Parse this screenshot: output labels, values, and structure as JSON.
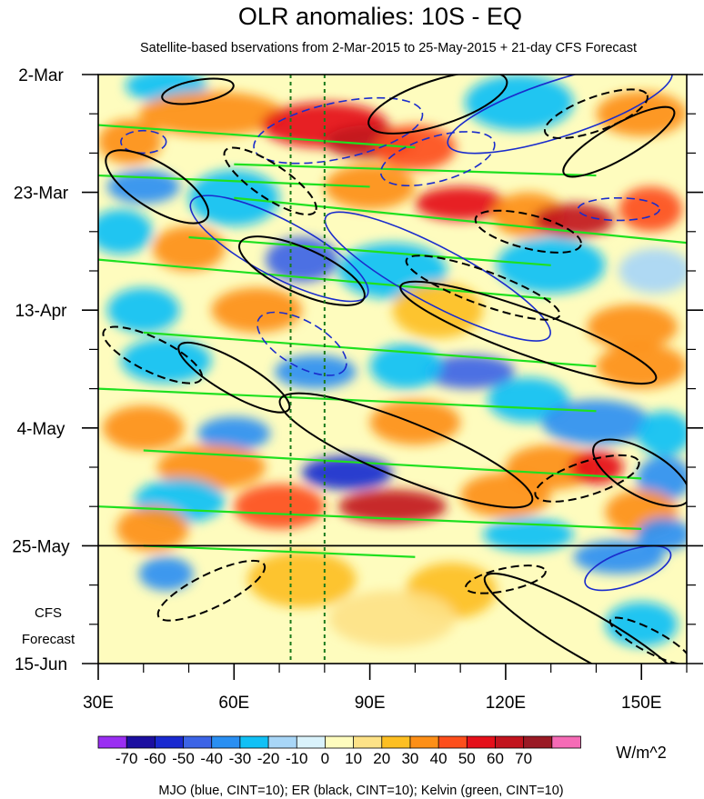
{
  "chart_data": {
    "type": "heatmap",
    "title": "OLR anomalies: 10S - EQ",
    "subtitle": "Satellite-based bservations from 2-Mar-2015 to 25-May-2015 + 21-day CFS Forecast",
    "x_axis": {
      "range": [
        30,
        160
      ],
      "ticks": [
        30,
        60,
        90,
        120,
        150
      ],
      "tick_labels": [
        "30E",
        "60E",
        "90E",
        "120E",
        "150E"
      ]
    },
    "y_axis": {
      "range_days": [
        0,
        105
      ],
      "ticks_days": [
        0,
        21,
        42,
        63,
        84,
        105
      ],
      "tick_labels": [
        "2-Mar",
        "23-Mar",
        "13-Apr",
        "4-May",
        "25-May",
        "15-Jun"
      ]
    },
    "forecast_label": [
      "CFS",
      "Forecast"
    ],
    "forecast_start_day": 84,
    "reference_longitudes": [
      72.5,
      80
    ],
    "colorbar": {
      "levels": [
        -70,
        -60,
        -50,
        -40,
        -30,
        -20,
        -10,
        0,
        10,
        20,
        30,
        40,
        50,
        60,
        70
      ],
      "labels": [
        "-70",
        "-60",
        "-50",
        "-40",
        "-30",
        "-20",
        "-10",
        "0",
        "10",
        "20",
        "30",
        "40",
        "50",
        "60",
        "70"
      ],
      "colors": [
        "#9a2ef2",
        "#1c0fa0",
        "#1a2ad0",
        "#3c64e6",
        "#2a8ff2",
        "#11c0f5",
        "#a8d6f7",
        "#d9f2fb",
        "#fefcbe",
        "#fde287",
        "#fdbf22",
        "#fd8f17",
        "#fd4e1b",
        "#e5101a",
        "#c2141e",
        "#9a1a25",
        "#f56bb6"
      ],
      "units": "W/m^2"
    },
    "footnote": "MJO (blue, CINT=10); ER (black, CINT=10); Kelvin (green, CINT=10)",
    "mjo_color": "#1a2ccc",
    "er_color": "#000000",
    "kelvin_color": "#1fe01f",
    "blobs": [
      {
        "lon": 45,
        "day": 2,
        "value": -30,
        "rlon": 9,
        "rday": 3
      },
      {
        "lon": 55,
        "day": 7,
        "value": 30,
        "rlon": 16,
        "rday": 4
      },
      {
        "lon": 37,
        "day": 12,
        "value": 30,
        "rlon": 7,
        "rday": 4
      },
      {
        "lon": 80,
        "day": 9,
        "value": 50,
        "rlon": 14,
        "rday": 4
      },
      {
        "lon": 90,
        "day": 12,
        "value": 60,
        "rlon": 10,
        "rday": 3
      },
      {
        "lon": 100,
        "day": 13,
        "value": 40,
        "rlon": 9,
        "rday": 4
      },
      {
        "lon": 123,
        "day": 5,
        "value": -30,
        "rlon": 12,
        "rday": 5
      },
      {
        "lon": 150,
        "day": 7,
        "value": 30,
        "rlon": 10,
        "rday": 4
      },
      {
        "lon": 40,
        "day": 20,
        "value": -40,
        "rlon": 8,
        "rday": 3
      },
      {
        "lon": 60,
        "day": 22,
        "value": -30,
        "rlon": 10,
        "rday": 5
      },
      {
        "lon": 35,
        "day": 28,
        "value": -30,
        "rlon": 7,
        "rday": 4
      },
      {
        "lon": 90,
        "day": 20,
        "value": 30,
        "rlon": 10,
        "rday": 4
      },
      {
        "lon": 110,
        "day": 23,
        "value": 50,
        "rlon": 10,
        "rday": 3
      },
      {
        "lon": 125,
        "day": 25,
        "value": 30,
        "rlon": 8,
        "rday": 4
      },
      {
        "lon": 135,
        "day": 26,
        "value": 60,
        "rlon": 9,
        "rday": 3
      },
      {
        "lon": 152,
        "day": 24,
        "value": 40,
        "rlon": 7,
        "rday": 4
      },
      {
        "lon": 50,
        "day": 31,
        "value": 30,
        "rlon": 8,
        "rday": 4
      },
      {
        "lon": 75,
        "day": 33,
        "value": -50,
        "rlon": 8,
        "rday": 4
      },
      {
        "lon": 95,
        "day": 35,
        "value": -30,
        "rlon": 12,
        "rday": 5
      },
      {
        "lon": 130,
        "day": 34,
        "value": -30,
        "rlon": 12,
        "rday": 5
      },
      {
        "lon": 153,
        "day": 35,
        "value": -20,
        "rlon": 8,
        "rday": 4
      },
      {
        "lon": 40,
        "day": 42,
        "value": -30,
        "rlon": 8,
        "rday": 4
      },
      {
        "lon": 65,
        "day": 42,
        "value": 30,
        "rlon": 10,
        "rday": 4
      },
      {
        "lon": 105,
        "day": 42,
        "value": 20,
        "rlon": 10,
        "rday": 5
      },
      {
        "lon": 148,
        "day": 45,
        "value": 30,
        "rlon": 10,
        "rday": 4
      },
      {
        "lon": 45,
        "day": 51,
        "value": -30,
        "rlon": 10,
        "rday": 4
      },
      {
        "lon": 78,
        "day": 53,
        "value": -40,
        "rlon": 9,
        "rday": 3
      },
      {
        "lon": 112,
        "day": 53,
        "value": -50,
        "rlon": 10,
        "rday": 3
      },
      {
        "lon": 98,
        "day": 52,
        "value": -30,
        "rlon": 8,
        "rday": 4
      },
      {
        "lon": 150,
        "day": 52,
        "value": 30,
        "rlon": 10,
        "rday": 4
      },
      {
        "lon": 125,
        "day": 58,
        "value": -30,
        "rlon": 9,
        "rday": 4
      },
      {
        "lon": 40,
        "day": 63,
        "value": 30,
        "rlon": 9,
        "rday": 4
      },
      {
        "lon": 60,
        "day": 64,
        "value": -40,
        "rlon": 8,
        "rday": 3
      },
      {
        "lon": 100,
        "day": 62,
        "value": 30,
        "rlon": 10,
        "rday": 4
      },
      {
        "lon": 140,
        "day": 62,
        "value": -40,
        "rlon": 12,
        "rday": 4
      },
      {
        "lon": 155,
        "day": 64,
        "value": -30,
        "rlon": 6,
        "rday": 4
      },
      {
        "lon": 55,
        "day": 70,
        "value": 30,
        "rlon": 12,
        "rday": 4
      },
      {
        "lon": 85,
        "day": 71,
        "value": -60,
        "rlon": 10,
        "rday": 3
      },
      {
        "lon": 130,
        "day": 70,
        "value": 30,
        "rlon": 10,
        "rday": 4
      },
      {
        "lon": 140,
        "day": 70,
        "value": 50,
        "rlon": 6,
        "rday": 3
      },
      {
        "lon": 155,
        "day": 72,
        "value": -40,
        "rlon": 6,
        "rday": 4
      },
      {
        "lon": 48,
        "day": 76,
        "value": -30,
        "rlon": 10,
        "rday": 4
      },
      {
        "lon": 70,
        "day": 77,
        "value": 40,
        "rlon": 10,
        "rday": 4
      },
      {
        "lon": 95,
        "day": 77,
        "value": 60,
        "rlon": 12,
        "rday": 3
      },
      {
        "lon": 120,
        "day": 75,
        "value": 30,
        "rlon": 10,
        "rday": 4
      },
      {
        "lon": 150,
        "day": 78,
        "value": 30,
        "rlon": 8,
        "rday": 4
      },
      {
        "lon": 42,
        "day": 81,
        "value": 30,
        "rlon": 8,
        "rday": 4
      },
      {
        "lon": 125,
        "day": 82,
        "value": -30,
        "rlon": 10,
        "rday": 3
      },
      {
        "lon": 155,
        "day": 82,
        "value": -40,
        "rlon": 6,
        "rday": 3
      },
      {
        "lon": 45,
        "day": 89,
        "value": -40,
        "rlon": 6,
        "rday": 3
      },
      {
        "lon": 75,
        "day": 90,
        "value": 20,
        "rlon": 12,
        "rday": 5
      },
      {
        "lon": 145,
        "day": 86,
        "value": -40,
        "rlon": 10,
        "rday": 3
      },
      {
        "lon": 108,
        "day": 92,
        "value": 20,
        "rlon": 10,
        "rday": 5
      },
      {
        "lon": 150,
        "day": 98,
        "value": -30,
        "rlon": 8,
        "rday": 4
      },
      {
        "lon": 95,
        "day": 97,
        "value": 10,
        "rlon": 14,
        "rday": 5
      }
    ],
    "contours": [
      {
        "set": "mjo",
        "dashed": true,
        "lon": 40,
        "day": 12,
        "rlon": 5,
        "rday": 2,
        "angle": 0
      },
      {
        "set": "mjo",
        "dashed": true,
        "lon": 83,
        "day": 10,
        "rlon": 19,
        "rday": 5,
        "angle": -12
      },
      {
        "set": "mjo",
        "dashed": true,
        "lon": 105,
        "day": 15,
        "rlon": 13,
        "rday": 4,
        "angle": -16
      },
      {
        "set": "mjo",
        "dashed": false,
        "lon": 132,
        "day": 6,
        "rlon": 26,
        "rday": 5,
        "angle": -18
      },
      {
        "set": "mjo",
        "dashed": false,
        "lon": 70,
        "day": 31,
        "rlon": 22,
        "rday": 5,
        "angle": 28
      },
      {
        "set": "mjo",
        "dashed": false,
        "lon": 105,
        "day": 36,
        "rlon": 28,
        "rday": 5,
        "angle": 28
      },
      {
        "set": "mjo",
        "dashed": true,
        "lon": 75,
        "day": 48,
        "rlon": 11,
        "rday": 4,
        "angle": 30
      },
      {
        "set": "mjo",
        "dashed": true,
        "lon": 145,
        "day": 24,
        "rlon": 9,
        "rday": 2,
        "angle": 0
      },
      {
        "set": "mjo",
        "dashed": false,
        "lon": 147,
        "day": 88,
        "rlon": 10,
        "rday": 3,
        "angle": -20
      },
      {
        "set": "er",
        "dashed": false,
        "lon": 52,
        "day": 3,
        "rlon": 8,
        "rday": 2,
        "angle": -10
      },
      {
        "set": "er",
        "dashed": false,
        "lon": 105,
        "day": 5,
        "rlon": 16,
        "rday": 4,
        "angle": -18
      },
      {
        "set": "er",
        "dashed": true,
        "lon": 140,
        "day": 7,
        "rlon": 12,
        "rday": 3,
        "angle": -20
      },
      {
        "set": "er",
        "dashed": false,
        "lon": 145,
        "day": 12,
        "rlon": 14,
        "rday": 3,
        "angle": -30
      },
      {
        "set": "er",
        "dashed": false,
        "lon": 43,
        "day": 20,
        "rlon": 13,
        "rday": 4,
        "angle": 32
      },
      {
        "set": "er",
        "dashed": true,
        "lon": 68,
        "day": 19,
        "rlon": 12,
        "rday": 3,
        "angle": 34
      },
      {
        "set": "er",
        "dashed": false,
        "lon": 75,
        "day": 35,
        "rlon": 15,
        "rday": 4,
        "angle": 24
      },
      {
        "set": "er",
        "dashed": true,
        "lon": 115,
        "day": 38,
        "rlon": 18,
        "rday": 3,
        "angle": 20
      },
      {
        "set": "er",
        "dashed": true,
        "lon": 125,
        "day": 28,
        "rlon": 12,
        "rday": 3,
        "angle": 14
      },
      {
        "set": "er",
        "dashed": false,
        "lon": 125,
        "day": 46,
        "rlon": 30,
        "rday": 4,
        "angle": 20
      },
      {
        "set": "er",
        "dashed": true,
        "lon": 42,
        "day": 50,
        "rlon": 12,
        "rday": 3,
        "angle": 26
      },
      {
        "set": "er",
        "dashed": false,
        "lon": 60,
        "day": 54,
        "rlon": 14,
        "rday": 3,
        "angle": 30
      },
      {
        "set": "er",
        "dashed": false,
        "lon": 98,
        "day": 67,
        "rlon": 30,
        "rday": 5,
        "angle": 22
      },
      {
        "set": "er",
        "dashed": true,
        "lon": 138,
        "day": 72,
        "rlon": 12,
        "rday": 3,
        "angle": -18
      },
      {
        "set": "er",
        "dashed": false,
        "lon": 150,
        "day": 71,
        "rlon": 12,
        "rday": 4,
        "angle": 30
      },
      {
        "set": "er",
        "dashed": true,
        "lon": 55,
        "day": 92,
        "rlon": 13,
        "rday": 3,
        "angle": -26
      },
      {
        "set": "er",
        "dashed": true,
        "lon": 120,
        "day": 90,
        "rlon": 9,
        "rday": 2,
        "angle": -12
      },
      {
        "set": "er",
        "dashed": false,
        "lon": 138,
        "day": 100,
        "rlon": 26,
        "rday": 4,
        "angle": 30
      },
      {
        "set": "er",
        "dashed": true,
        "lon": 152,
        "day": 101,
        "rlon": 10,
        "rday": 2,
        "angle": 28
      }
    ],
    "kelvin_bands": [
      [
        30,
        9,
        100,
        13
      ],
      [
        30,
        18,
        90,
        20
      ],
      [
        50,
        29,
        130,
        34
      ],
      [
        60,
        16,
        140,
        18
      ],
      [
        30,
        33,
        130,
        40
      ],
      [
        40,
        46,
        140,
        52
      ],
      [
        30,
        56,
        140,
        60
      ],
      [
        40,
        67,
        150,
        72
      ],
      [
        30,
        77,
        150,
        81
      ],
      [
        40,
        84,
        100,
        86
      ],
      [
        60,
        22,
        160,
        30
      ]
    ]
  }
}
